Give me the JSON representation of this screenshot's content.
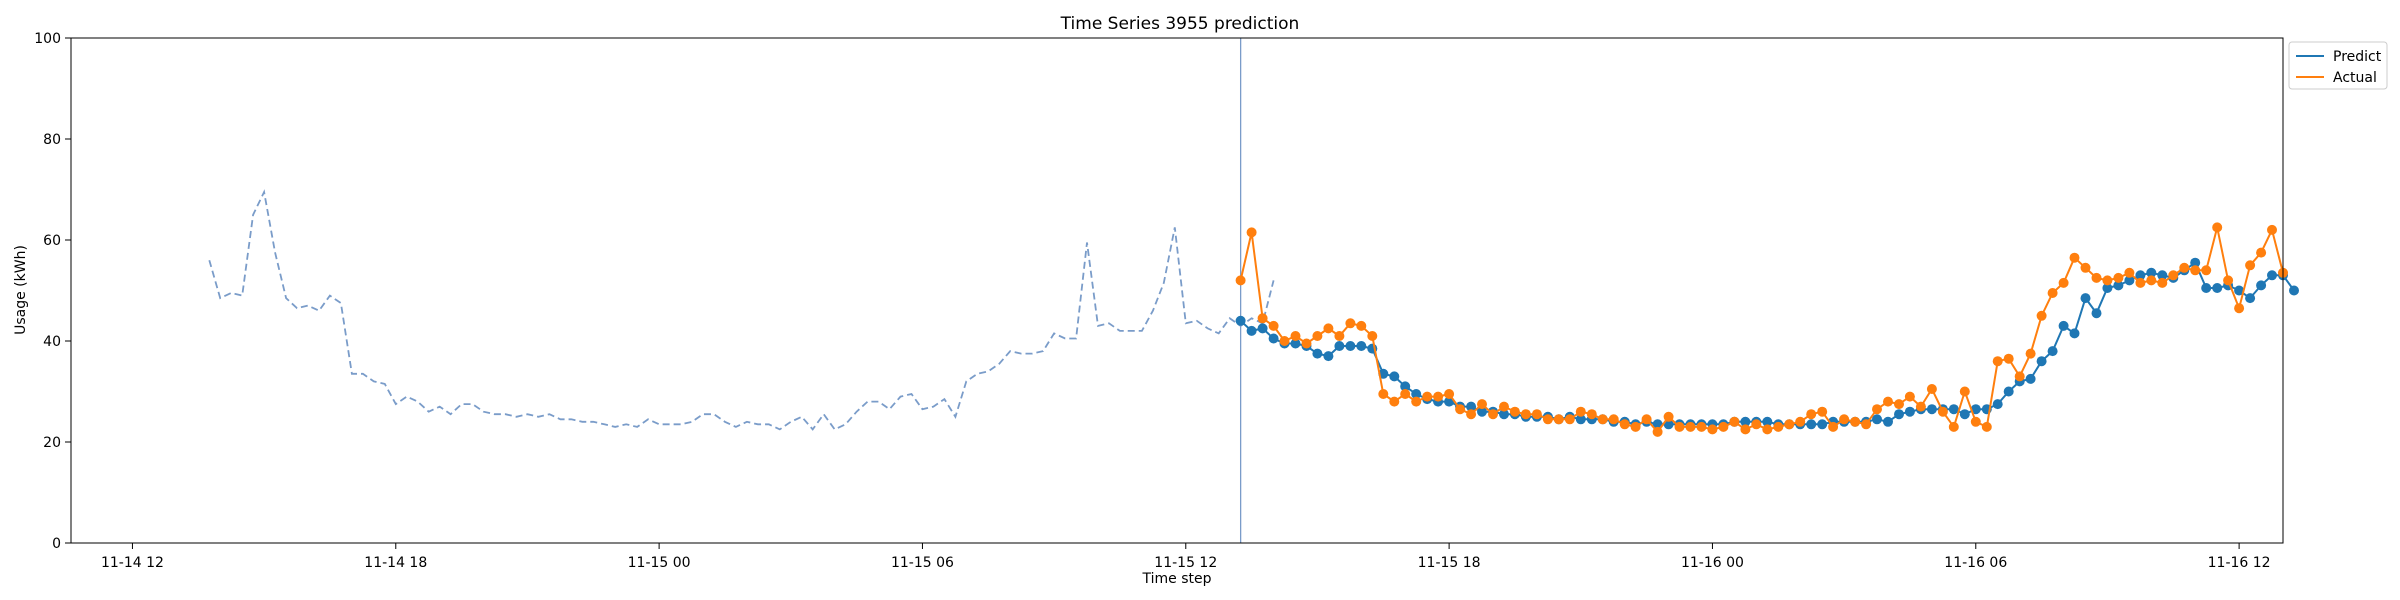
{
  "chart_data": {
    "type": "line",
    "title": "Time Series 3955 prediction",
    "xlabel": "Time step",
    "ylabel": "Usage (kWh)",
    "ylim": [
      0,
      100
    ],
    "yticks": [
      0,
      20,
      40,
      60,
      80,
      100
    ],
    "xlim_hours": [
      -1.4,
      49.0
    ],
    "xticks": [
      {
        "label": "11-14 12",
        "hour": 0
      },
      {
        "label": "11-14 18",
        "hour": 6
      },
      {
        "label": "11-15 00",
        "hour": 12
      },
      {
        "label": "11-15 06",
        "hour": 18
      },
      {
        "label": "11-15 12",
        "hour": 24
      },
      {
        "label": "11-15 18",
        "hour": 30
      },
      {
        "label": "11-16 00",
        "hour": 36
      },
      {
        "label": "11-16 06",
        "hour": 42
      },
      {
        "label": "11-16 12",
        "hour": 48
      }
    ],
    "forecast_start_hour": 25.25,
    "grid": false,
    "legend_position": "upper-right-outside",
    "colors": {
      "predict": "#1f77b4",
      "actual": "#ff7f0e",
      "history": "#7a9cc9",
      "divider": "#7a9cc9"
    },
    "series": [
      {
        "name": "",
        "role": "history",
        "start_hour": 1.75,
        "step_hours": 0.25,
        "values": [
          56,
          48.5,
          49.5,
          49,
          65,
          69.5,
          57.5,
          48.5,
          46.5,
          47,
          46,
          49,
          47.5,
          33.5,
          33.5,
          32,
          31.5,
          27.5,
          29,
          28,
          26,
          27,
          25.5,
          27.5,
          27.5,
          26,
          25.5,
          25.5,
          25,
          25.5,
          25,
          25.5,
          24.5,
          24.5,
          24,
          24,
          23.5,
          23,
          23.5,
          23,
          24.5,
          23.5,
          23.5,
          23.5,
          24,
          25.5,
          25.5,
          24,
          23,
          24,
          23.5,
          23.5,
          22.5,
          24,
          25,
          22.5,
          25.5,
          22.5,
          23.5,
          26,
          28,
          28,
          26.5,
          29,
          29.5,
          26.5,
          27,
          28.5,
          25,
          32,
          33.5,
          34,
          35.5,
          38,
          37.5,
          37.5,
          38,
          41.5,
          40.5,
          40.5,
          59.5,
          43,
          43.5,
          42,
          42,
          42,
          46,
          51.5,
          62.5,
          43.5,
          44,
          42.5,
          41.5,
          44.5,
          43,
          44.5,
          43.5,
          52
        ]
      },
      {
        "name": "Predict",
        "start_hour": 25.25,
        "step_hours": 0.25,
        "values": [
          44,
          42,
          42.5,
          40.5,
          39.5,
          39.5,
          39,
          37.5,
          37,
          39,
          39,
          39,
          38.5,
          33.5,
          33,
          31,
          29.5,
          28.5,
          28,
          28,
          27,
          27,
          26,
          26,
          25.5,
          25.5,
          25,
          25,
          25,
          24.5,
          25,
          24.5,
          24.5,
          24.5,
          24,
          24,
          23.5,
          24,
          23.5,
          23.5,
          23.5,
          23.5,
          23.5,
          23.5,
          23.5,
          24,
          24,
          24,
          24,
          23.5,
          23.5,
          23.5,
          23.5,
          23.5,
          24,
          24,
          24,
          24,
          24.5,
          24,
          25.5,
          26,
          26.5,
          26.5,
          26.5,
          26.5,
          25.5,
          26.5,
          26.5,
          27.5,
          30,
          32,
          32.5,
          36,
          38,
          43,
          41.5,
          48.5,
          45.5,
          50.5,
          51,
          52,
          53,
          53.5,
          53,
          52.5,
          54,
          55.5,
          50.5,
          50.5,
          51,
          50,
          48.5,
          51,
          53,
          53,
          50
        ]
      },
      {
        "name": "Actual",
        "start_hour": 25.25,
        "step_hours": 0.25,
        "values": [
          52,
          61.5,
          44.5,
          43,
          40,
          41,
          39.5,
          41,
          42.5,
          41,
          43.5,
          43,
          41,
          29.5,
          28,
          29.5,
          28,
          29,
          29,
          29.5,
          26.5,
          25.5,
          27.5,
          25.5,
          27,
          26,
          25.5,
          25.5,
          24.5,
          24.5,
          24.5,
          26,
          25.5,
          24.5,
          24.5,
          23.5,
          23,
          24.5,
          22,
          25,
          23,
          23,
          23,
          22.5,
          23,
          24,
          22.5,
          23.5,
          22.5,
          23,
          23.5,
          24,
          25.5,
          26,
          23,
          24.5,
          24,
          23.5,
          26.5,
          28,
          27.5,
          29,
          27,
          30.5,
          26,
          23,
          30,
          24,
          23,
          36,
          36.5,
          33,
          37.5,
          45,
          49.5,
          51.5,
          56.5,
          54.5,
          52.5,
          52,
          52.5,
          53.5,
          51.5,
          52,
          51.5,
          53,
          54.5,
          54,
          54,
          62.5,
          52,
          46.5,
          55,
          57.5,
          62,
          53.5
        ]
      }
    ]
  }
}
